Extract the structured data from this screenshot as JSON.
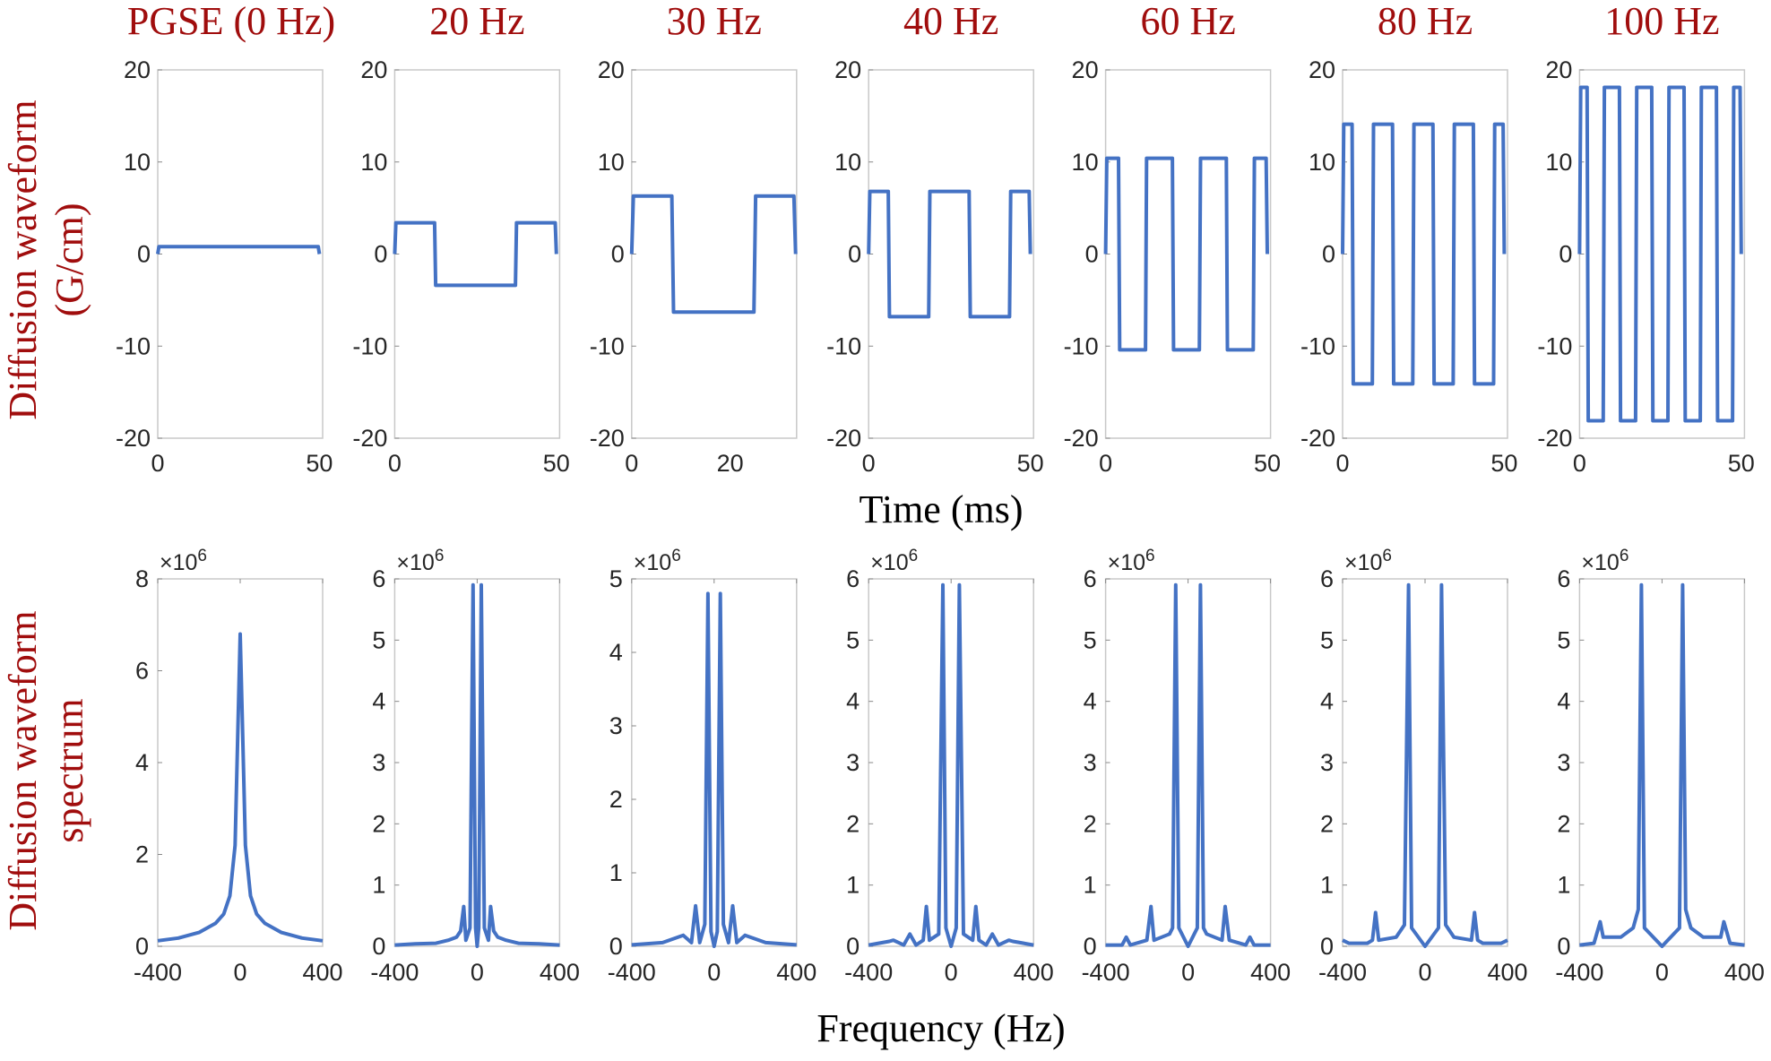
{
  "chart_data": {
    "type": "line",
    "line_color": "#4472c4",
    "title_color": "#a00d0d",
    "column_titles": [
      "PGSE (0 Hz)",
      "20 Hz",
      "30 Hz",
      "40 Hz",
      "60 Hz",
      "80 Hz",
      "100 Hz"
    ],
    "top_row": {
      "ylabel_lines": [
        "Diffusion waveform",
        "(G/cm)"
      ],
      "xlabel": "Time (ms)",
      "ylim": [
        -20,
        20
      ],
      "yticks": [
        "20",
        "10",
        "0",
        "-10",
        "-20"
      ],
      "panels": [
        {
          "frequency_hz": 0,
          "amplitude": 0.8,
          "duration_ms": 50,
          "xlim": [
            0,
            51
          ],
          "xticks": [
            "0",
            "50"
          ]
        },
        {
          "frequency_hz": 20,
          "amplitude": 3.4,
          "duration_ms": 50,
          "xlim": [
            0,
            51
          ],
          "xticks": [
            "0",
            "50"
          ]
        },
        {
          "frequency_hz": 30,
          "amplitude": 6.3,
          "duration_ms": 33.3,
          "xlim": [
            0,
            33.5
          ],
          "xticks": [
            "0",
            "20"
          ]
        },
        {
          "frequency_hz": 40,
          "amplitude": 6.8,
          "duration_ms": 50,
          "xlim": [
            0,
            51
          ],
          "xticks": [
            "0",
            "50"
          ]
        },
        {
          "frequency_hz": 60,
          "amplitude": 10.4,
          "duration_ms": 50,
          "xlim": [
            0,
            51
          ],
          "xticks": [
            "0",
            "50"
          ]
        },
        {
          "frequency_hz": 80,
          "amplitude": 14.1,
          "duration_ms": 50,
          "xlim": [
            0,
            51
          ],
          "xticks": [
            "0",
            "50"
          ]
        },
        {
          "frequency_hz": 100,
          "amplitude": 18.1,
          "duration_ms": 50,
          "xlim": [
            0,
            51
          ],
          "xticks": [
            "0",
            "50"
          ]
        }
      ]
    },
    "bottom_row": {
      "ylabel_lines": [
        "Diffusion waveform",
        "spectrum"
      ],
      "xlabel": "Frequency (Hz)",
      "xlim": [
        -400,
        400
      ],
      "xticks": [
        "-400",
        "0",
        "400"
      ],
      "multiplier": "×10",
      "multiplier_exp": "6",
      "panels": [
        {
          "ylim": [
            0,
            8
          ],
          "yticks": [
            "8",
            "6",
            "4",
            "2",
            "0"
          ],
          "points": [
            [
              -400,
              0.12
            ],
            [
              -300,
              0.18
            ],
            [
              -200,
              0.3
            ],
            [
              -120,
              0.5
            ],
            [
              -80,
              0.7
            ],
            [
              -50,
              1.1
            ],
            [
              -25,
              2.2
            ],
            [
              0,
              6.8
            ],
            [
              25,
              2.2
            ],
            [
              50,
              1.1
            ],
            [
              80,
              0.7
            ],
            [
              120,
              0.5
            ],
            [
              200,
              0.3
            ],
            [
              300,
              0.18
            ],
            [
              400,
              0.12
            ]
          ]
        },
        {
          "ylim": [
            0,
            6
          ],
          "yticks": [
            "6",
            "5",
            "4",
            "3",
            "2",
            "1",
            "0"
          ],
          "points": [
            [
              -400,
              0.02
            ],
            [
              -300,
              0.04
            ],
            [
              -200,
              0.05
            ],
            [
              -140,
              0.1
            ],
            [
              -100,
              0.15
            ],
            [
              -80,
              0.25
            ],
            [
              -65,
              0.65
            ],
            [
              -55,
              0.1
            ],
            [
              -35,
              0.3
            ],
            [
              -20,
              5.9
            ],
            [
              -8,
              0.3
            ],
            [
              0,
              0
            ],
            [
              8,
              0.3
            ],
            [
              20,
              5.9
            ],
            [
              35,
              0.3
            ],
            [
              55,
              0.1
            ],
            [
              65,
              0.65
            ],
            [
              80,
              0.25
            ],
            [
              100,
              0.15
            ],
            [
              140,
              0.1
            ],
            [
              200,
              0.05
            ],
            [
              300,
              0.04
            ],
            [
              400,
              0.02
            ]
          ]
        },
        {
          "ylim": [
            0,
            5
          ],
          "yticks": [
            "5",
            "4",
            "3",
            "2",
            "1",
            "0"
          ],
          "points": [
            [
              -400,
              0.02
            ],
            [
              -250,
              0.05
            ],
            [
              -150,
              0.15
            ],
            [
              -110,
              0.05
            ],
            [
              -90,
              0.55
            ],
            [
              -70,
              0.05
            ],
            [
              -45,
              0.3
            ],
            [
              -30,
              4.8
            ],
            [
              -15,
              0.2
            ],
            [
              0,
              0
            ],
            [
              15,
              0.2
            ],
            [
              30,
              4.8
            ],
            [
              45,
              0.3
            ],
            [
              70,
              0.05
            ],
            [
              90,
              0.55
            ],
            [
              110,
              0.05
            ],
            [
              150,
              0.15
            ],
            [
              250,
              0.05
            ],
            [
              400,
              0.02
            ]
          ]
        },
        {
          "ylim": [
            0,
            6
          ],
          "yticks": [
            "6",
            "5",
            "4",
            "3",
            "2",
            "1",
            "0"
          ],
          "points": [
            [
              -400,
              0.02
            ],
            [
              -300,
              0.08
            ],
            [
              -280,
              0.1
            ],
            [
              -230,
              0.02
            ],
            [
              -200,
              0.2
            ],
            [
              -170,
              0.02
            ],
            [
              -135,
              0.1
            ],
            [
              -120,
              0.65
            ],
            [
              -105,
              0.1
            ],
            [
              -60,
              0.2
            ],
            [
              -40,
              5.9
            ],
            [
              -25,
              0.3
            ],
            [
              0,
              0
            ],
            [
              25,
              0.3
            ],
            [
              40,
              5.9
            ],
            [
              60,
              0.2
            ],
            [
              105,
              0.1
            ],
            [
              120,
              0.65
            ],
            [
              135,
              0.1
            ],
            [
              170,
              0.02
            ],
            [
              200,
              0.2
            ],
            [
              230,
              0.02
            ],
            [
              280,
              0.1
            ],
            [
              300,
              0.08
            ],
            [
              400,
              0.02
            ]
          ]
        },
        {
          "ylim": [
            0,
            6
          ],
          "yticks": [
            "6",
            "5",
            "4",
            "3",
            "2",
            "1",
            "0"
          ],
          "points": [
            [
              -400,
              0.02
            ],
            [
              -320,
              0.02
            ],
            [
              -300,
              0.15
            ],
            [
              -280,
              0.02
            ],
            [
              -200,
              0.1
            ],
            [
              -180,
              0.65
            ],
            [
              -165,
              0.1
            ],
            [
              -90,
              0.2
            ],
            [
              -75,
              0.3
            ],
            [
              -60,
              5.9
            ],
            [
              -45,
              0.3
            ],
            [
              0,
              0
            ],
            [
              45,
              0.3
            ],
            [
              60,
              5.9
            ],
            [
              75,
              0.3
            ],
            [
              90,
              0.2
            ],
            [
              165,
              0.1
            ],
            [
              180,
              0.65
            ],
            [
              200,
              0.1
            ],
            [
              280,
              0.02
            ],
            [
              300,
              0.15
            ],
            [
              320,
              0.02
            ],
            [
              400,
              0.02
            ]
          ]
        },
        {
          "ylim": [
            0,
            6
          ],
          "yticks": [
            "6",
            "5",
            "4",
            "3",
            "2",
            "1",
            "0"
          ],
          "points": [
            [
              -400,
              0.1
            ],
            [
              -370,
              0.05
            ],
            [
              -280,
              0.05
            ],
            [
              -255,
              0.1
            ],
            [
              -240,
              0.55
            ],
            [
              -225,
              0.1
            ],
            [
              -140,
              0.15
            ],
            [
              -100,
              0.35
            ],
            [
              -80,
              5.9
            ],
            [
              -65,
              0.3
            ],
            [
              0,
              0
            ],
            [
              65,
              0.3
            ],
            [
              80,
              5.9
            ],
            [
              100,
              0.35
            ],
            [
              140,
              0.15
            ],
            [
              225,
              0.1
            ],
            [
              240,
              0.55
            ],
            [
              255,
              0.1
            ],
            [
              280,
              0.05
            ],
            [
              370,
              0.05
            ],
            [
              400,
              0.1
            ]
          ]
        },
        {
          "ylim": [
            0,
            6
          ],
          "yticks": [
            "6",
            "5",
            "4",
            "3",
            "2",
            "1",
            "0"
          ],
          "points": [
            [
              -400,
              0.02
            ],
            [
              -330,
              0.05
            ],
            [
              -300,
              0.4
            ],
            [
              -285,
              0.15
            ],
            [
              -200,
              0.15
            ],
            [
              -140,
              0.3
            ],
            [
              -115,
              0.6
            ],
            [
              -100,
              5.9
            ],
            [
              -85,
              0.3
            ],
            [
              0,
              0
            ],
            [
              85,
              0.3
            ],
            [
              100,
              5.9
            ],
            [
              115,
              0.6
            ],
            [
              140,
              0.3
            ],
            [
              200,
              0.15
            ],
            [
              285,
              0.15
            ],
            [
              300,
              0.4
            ],
            [
              330,
              0.05
            ],
            [
              400,
              0.02
            ]
          ]
        }
      ]
    }
  }
}
